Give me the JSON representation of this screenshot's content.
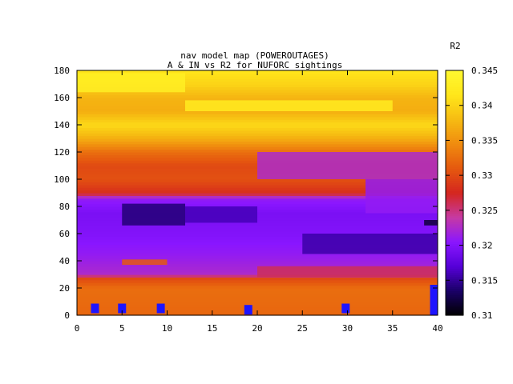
{
  "chart_data": {
    "type": "heatmap",
    "title_line1": "nav model map (POWEROUTAGES)",
    "title_line2": "A & IN vs R2 for NUFORC sightings",
    "colorbar_label": "R2",
    "xlim": [
      0,
      40
    ],
    "ylim": [
      0,
      180
    ],
    "zlim": [
      0.31,
      0.345
    ],
    "x_ticks": [
      0,
      5,
      10,
      15,
      20,
      25,
      30,
      35,
      40
    ],
    "y_ticks": [
      0,
      20,
      40,
      60,
      80,
      100,
      120,
      140,
      160,
      180
    ],
    "z_ticks": [
      "0.31",
      "0.315",
      "0.32",
      "0.325",
      "0.33",
      "0.335",
      "0.34",
      "0.345"
    ],
    "palette": [
      "#000000",
      "#1a0066",
      "#5500d8",
      "#8a16ff",
      "#c63aa4",
      "#d4261f",
      "#e5580f",
      "#f08b0f",
      "#f6bb12",
      "#ffe61a",
      "#fff830"
    ],
    "row_profile": [
      {
        "y": 0,
        "r2": 0.332
      },
      {
        "y": 20,
        "r2": 0.3325
      },
      {
        "y": 27,
        "r2": 0.33
      },
      {
        "y": 30,
        "r2": 0.3225
      },
      {
        "y": 45,
        "r2": 0.321
      },
      {
        "y": 60,
        "r2": 0.32
      },
      {
        "y": 75,
        "r2": 0.3195
      },
      {
        "y": 86,
        "r2": 0.321
      },
      {
        "y": 90,
        "r2": 0.328
      },
      {
        "y": 100,
        "r2": 0.3305
      },
      {
        "y": 110,
        "r2": 0.33
      },
      {
        "y": 120,
        "r2": 0.3325
      },
      {
        "y": 130,
        "r2": 0.337
      },
      {
        "y": 140,
        "r2": 0.3405
      },
      {
        "y": 150,
        "r2": 0.337
      },
      {
        "y": 160,
        "r2": 0.3375
      },
      {
        "y": 170,
        "r2": 0.34
      },
      {
        "y": 180,
        "r2": 0.3415
      }
    ],
    "patches": [
      {
        "x": [
          20,
          40
        ],
        "y": [
          100,
          120
        ],
        "r2": 0.3225
      },
      {
        "x": [
          32,
          40
        ],
        "y": [
          75,
          100
        ],
        "r2": 0.321
      },
      {
        "x": [
          5,
          12
        ],
        "y": [
          66,
          82
        ],
        "r2": 0.314
      },
      {
        "x": [
          12,
          20
        ],
        "y": [
          68,
          80
        ],
        "r2": 0.316
      },
      {
        "x": [
          25,
          40
        ],
        "y": [
          45,
          60
        ],
        "r2": 0.3155
      },
      {
        "x": [
          5,
          10
        ],
        "y": [
          37,
          41
        ],
        "r2": 0.331
      },
      {
        "x": [
          20,
          40
        ],
        "y": [
          28,
          36
        ],
        "r2": 0.326
      },
      {
        "x": [
          12,
          35
        ],
        "y": [
          150,
          158
        ],
        "r2": 0.3425
      },
      {
        "x": [
          38.5,
          40
        ],
        "y": [
          66,
          70
        ],
        "r2": 0.312
      },
      {
        "x": [
          0,
          12
        ],
        "y": [
          164,
          178
        ],
        "r2": 0.343
      }
    ],
    "markers": [
      {
        "x": 2,
        "y": 5
      },
      {
        "x": 5,
        "y": 5
      },
      {
        "x": 9.3,
        "y": 5
      },
      {
        "x": 19,
        "y": 4
      },
      {
        "x": 29.8,
        "y": 5
      },
      {
        "x": 39.6,
        "y": 12
      }
    ],
    "marker_color": "#1e14ff"
  }
}
